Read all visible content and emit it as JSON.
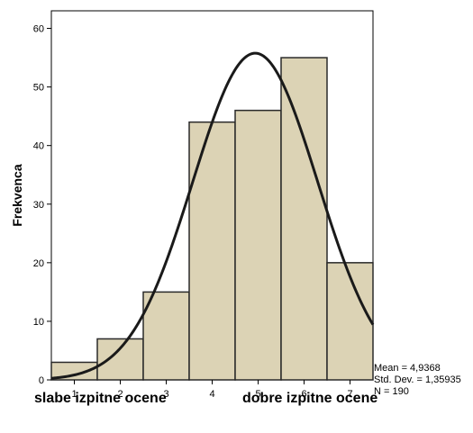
{
  "chart_data": {
    "type": "bar",
    "categories": [
      "1",
      "2",
      "3",
      "4",
      "5",
      "6",
      "7"
    ],
    "values": [
      3,
      7,
      15,
      44,
      46,
      55,
      20
    ],
    "ylabel": "Frekvenca",
    "ylim": [
      0,
      63
    ],
    "yticks": [
      "0",
      "10",
      "20",
      "30",
      "40",
      "50",
      "60"
    ],
    "xlim": [
      0.5,
      7.5
    ],
    "normal_curve": {
      "mean": 4.9368,
      "std": 1.35935,
      "n": 190,
      "bin_width": 1
    },
    "bar_color": "#dcd3b5",
    "bar_edge_color": "#2a2a2a",
    "curve_color": "#1a1a1a",
    "grid": false
  },
  "stats": {
    "mean": "Mean = 4,9368",
    "std": "Std. Dev. = 1,35935",
    "n": "N = 190"
  },
  "labels": {
    "left": "slabe izpitne ocene",
    "right": "dobre izpitne ocene"
  }
}
